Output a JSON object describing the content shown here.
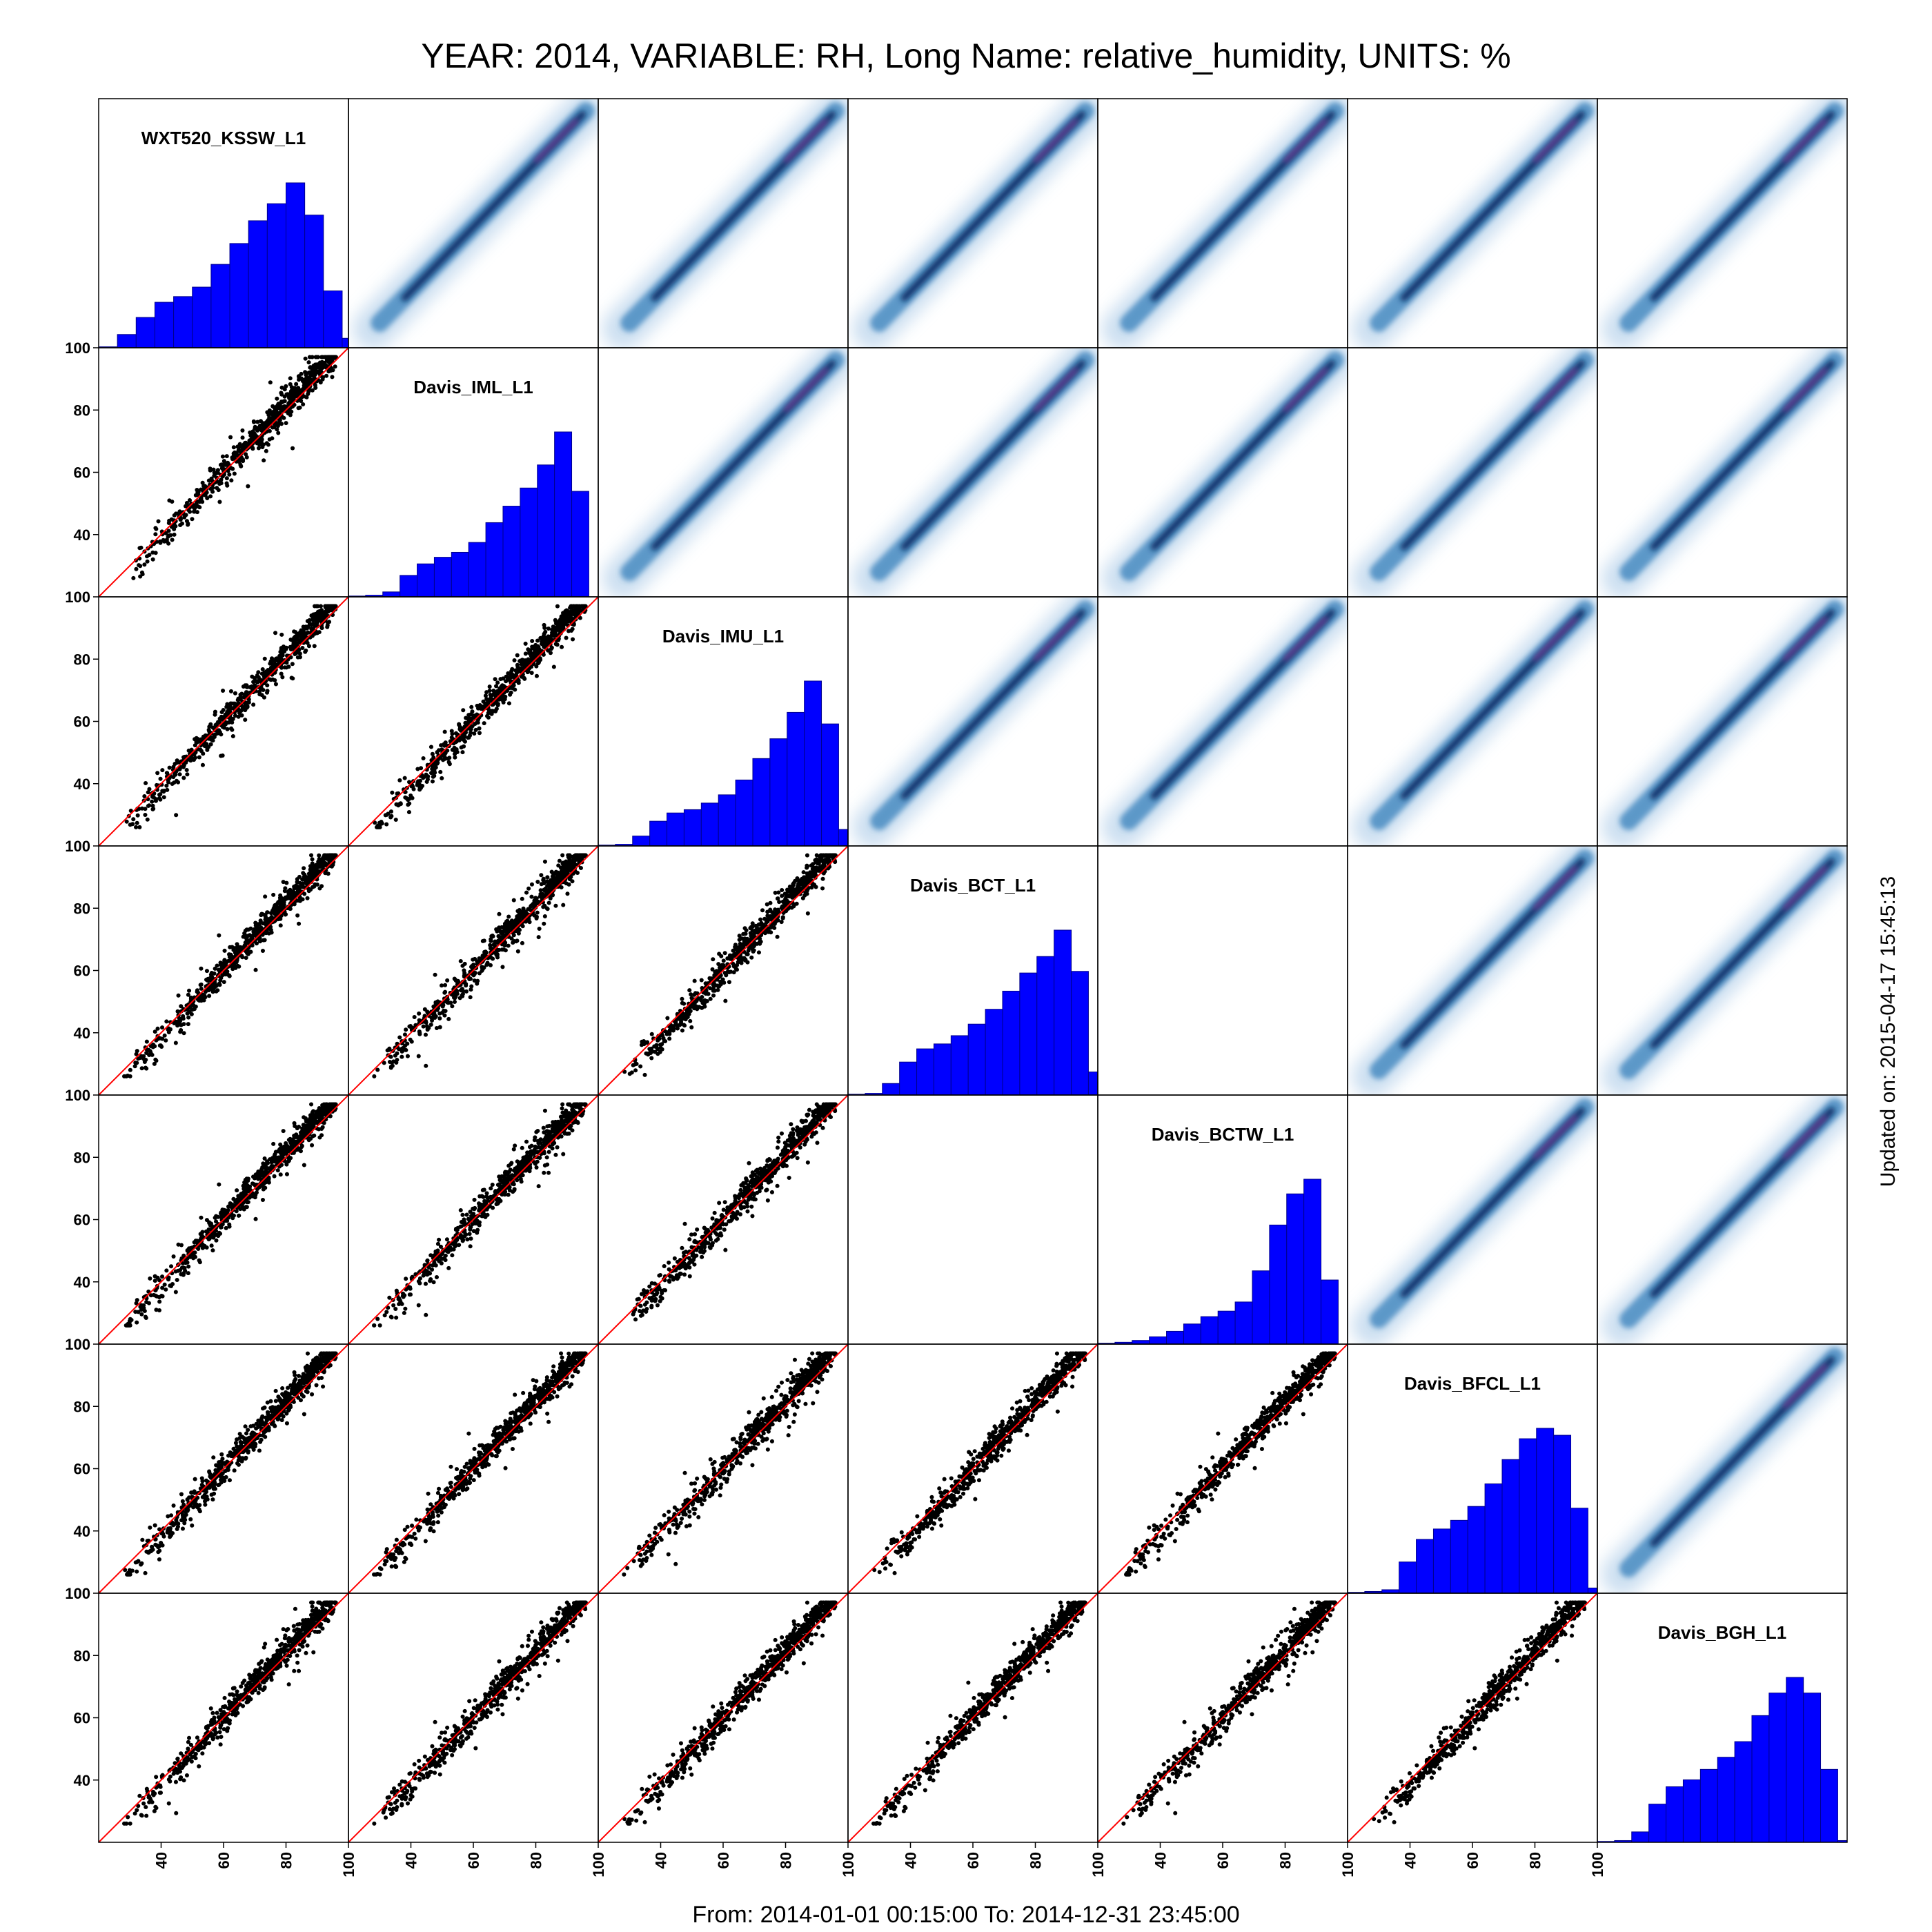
{
  "title": "YEAR: 2014, VARIABLE: RH, Long Name: relative_humidity, UNITS: %",
  "footer": "From: 2014-01-01 00:15:00 To: 2014-12-31 23:45:00",
  "updated": "Updated on: 2015-04-17 15:45:13",
  "chart_data": {
    "type": "scatter",
    "variables": [
      "WXT520_KSSW_L1",
      "Davis_IML_L1",
      "Davis_IMU_L1",
      "Davis_BCT_L1",
      "Davis_BCTW_L1",
      "Davis_BFCL_L1",
      "Davis_BGH_L1"
    ],
    "axis_range": [
      20,
      100
    ],
    "ticks": [
      40,
      60,
      80,
      100
    ],
    "tick_labels": [
      "40",
      "60",
      "80",
      "100"
    ],
    "missing_pairs": [
      [
        3,
        4
      ],
      [
        4,
        3
      ]
    ],
    "lower_panels": "scatter with 1:1 reference line",
    "upper_panels": "smoothed density scatter",
    "diagonal_panels": "histogram",
    "histograms": [
      {
        "name": "WXT520_KSSW_L1",
        "bins": [
          20,
          26,
          32,
          38,
          44,
          50,
          56,
          62,
          68,
          74,
          80,
          86,
          92,
          98
        ],
        "counts": [
          0.5,
          7,
          16,
          24,
          27,
          32,
          44,
          55,
          67,
          76,
          87,
          70,
          30,
          5
        ]
      },
      {
        "name": "Davis_IML_L1",
        "bins": [
          20,
          25.5,
          31,
          36.5,
          42,
          47.5,
          53,
          58.5,
          64,
          69.5,
          75,
          80.5,
          86,
          91.5,
          97
        ],
        "counts": [
          0.5,
          1,
          3,
          13,
          20,
          24,
          27,
          33,
          45,
          55,
          66,
          80,
          100,
          64
        ]
      },
      {
        "name": "Davis_IMU_L1",
        "bins": [
          20,
          25.5,
          31,
          36.5,
          42,
          47.5,
          53,
          58.5,
          64,
          69.5,
          75,
          80.5,
          86,
          91.5,
          97,
          100
        ],
        "counts": [
          0.5,
          1,
          6,
          15,
          20,
          22,
          26,
          31,
          40,
          53,
          65,
          81,
          100,
          74,
          10
        ]
      },
      {
        "name": "Davis_BCT_L1",
        "bins": [
          20,
          25.5,
          31,
          36.5,
          42,
          47.5,
          53,
          58.5,
          64,
          69.5,
          75,
          80.5,
          86,
          91.5,
          97,
          100
        ],
        "counts": [
          0.5,
          1,
          7,
          20,
          28,
          31,
          36,
          43,
          52,
          63,
          74,
          84,
          100,
          75,
          14
        ]
      },
      {
        "name": "Davis_BCTW_L1",
        "bins": [
          20,
          25.5,
          31,
          36.5,
          42,
          47.5,
          53,
          58.5,
          64,
          69.5,
          75,
          80.5,
          86,
          91.5,
          97
        ],
        "counts": [
          0.5,
          1,
          2,
          4,
          7,
          11,
          15,
          18,
          23,
          40,
          65,
          82,
          90,
          35
        ]
      },
      {
        "name": "Davis_BFCL_L1",
        "bins": [
          20,
          25.5,
          31,
          36.5,
          42,
          47.5,
          53,
          58.5,
          64,
          69.5,
          75,
          80.5,
          86,
          91.5,
          97,
          100
        ],
        "counts": [
          0.5,
          1,
          2,
          18,
          31,
          37,
          42,
          50,
          63,
          77,
          89,
          95,
          91,
          49,
          3
        ]
      },
      {
        "name": "Davis_BGH_L1",
        "bins": [
          20,
          25.5,
          31,
          36.5,
          42,
          47.5,
          53,
          58.5,
          64,
          69.5,
          75,
          80.5,
          86,
          91.5,
          97,
          100
        ],
        "counts": [
          0.5,
          1,
          6,
          22,
          32,
          36,
          42,
          49,
          58,
          73,
          86,
          95,
          86,
          42,
          1
        ]
      }
    ]
  }
}
